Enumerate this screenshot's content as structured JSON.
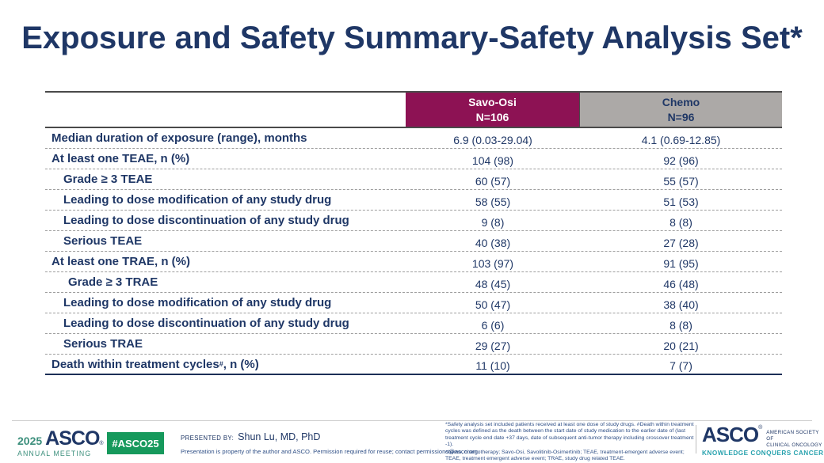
{
  "title": "Exposure and Safety Summary-Safety Analysis Set*",
  "table": {
    "header": {
      "col_savo": {
        "name": "Savo-Osi",
        "n": "N=106"
      },
      "col_chemo": {
        "name": "Chemo",
        "n": "N=96"
      }
    },
    "rows": [
      {
        "label": "Median duration of exposure (range), months",
        "sup": "",
        "after": "",
        "indent": 0,
        "savo": "6.9 (0.03-29.04)",
        "chemo": "4.1 (0.69-12.85)"
      },
      {
        "label": "At least one TEAE, n (%)",
        "sup": "",
        "after": "",
        "indent": 0,
        "savo": "104 (98)",
        "chemo": "92 (96)"
      },
      {
        "label": "Grade ≥ 3 TEAE",
        "sup": "",
        "after": "",
        "indent": 1,
        "savo": "60 (57)",
        "chemo": "55 (57)"
      },
      {
        "label": "Leading to dose modification of any study drug",
        "sup": "",
        "after": "",
        "indent": 1,
        "savo": "58 (55)",
        "chemo": "51 (53)"
      },
      {
        "label": "Leading to dose discontinuation of any study drug",
        "sup": "",
        "after": "",
        "indent": 1,
        "savo": "9 (8)",
        "chemo": "8 (8)"
      },
      {
        "label": "Serious TEAE",
        "sup": "",
        "after": "",
        "indent": 1,
        "savo": "40 (38)",
        "chemo": "27 (28)"
      },
      {
        "label": "At least one TRAE, n (%)",
        "sup": "",
        "after": "",
        "indent": 0,
        "savo": "103 (97)",
        "chemo": "91 (95)"
      },
      {
        "label": "Grade ≥ 3 TRAE",
        "sup": "",
        "after": "",
        "indent": 2,
        "savo": "48 (45)",
        "chemo": "46 (48)"
      },
      {
        "label": "Leading to dose modification of any study drug",
        "sup": "",
        "after": "",
        "indent": 1,
        "savo": "50 (47)",
        "chemo": "38 (40)"
      },
      {
        "label": "Leading to dose discontinuation of any study drug",
        "sup": "",
        "after": "",
        "indent": 1,
        "savo": "6 (6)",
        "chemo": "8 (8)"
      },
      {
        "label": "Serious TRAE",
        "sup": "",
        "after": "",
        "indent": 1,
        "savo": "29 (27)",
        "chemo": "20 (21)"
      },
      {
        "label": "Death within treatment cycles",
        "sup": "#",
        "after": ", n (%)",
        "indent": 0,
        "savo": "11 (10)",
        "chemo": "7 (7)"
      }
    ]
  },
  "footer": {
    "meeting_year": "2025",
    "meeting_org": "ASCO",
    "meeting_reg": "®",
    "meeting_name": "ANNUAL MEETING",
    "hashtag": "#ASCO25",
    "presented_by_label": "PRESENTED BY:",
    "presenter": "Shun Lu, MD, PhD",
    "permission": "Presentation is property of the author and ASCO. Permission required for reuse; contact permissions@asco.org.",
    "footnote1": "*Safety analysis set included patients received at least one dose of study drugs. #Death within treatment cycles was defined as the death between the start date of study medication to the earlier date of (last treatment cycle end date +37 days, date of subsequent anti-tumor therapy including crossover treatment -1).",
    "footnote2": "chemo, chemotherapy; Savo-Osi, Savolitinib-Osimertinib; TEAE, treatment-emergent adverse event; TEAE, treatment emergent adverse event; TRAE, study drug related TEAE.",
    "asco_word": "ASCO",
    "asco_reg": "®",
    "asco_society_line1": "AMERICAN SOCIETY OF",
    "asco_society_line2": "CLINICAL ONCOLOGY",
    "asco_tagline": "KNOWLEDGE CONQUERS CANCER"
  },
  "colors": {
    "navy": "#1F3766",
    "maroon": "#8D1254",
    "header_gray": "#ACA9A7",
    "green": "#16995C",
    "teal": "#3C8F7C",
    "teal_tagline": "#28A2AE"
  }
}
